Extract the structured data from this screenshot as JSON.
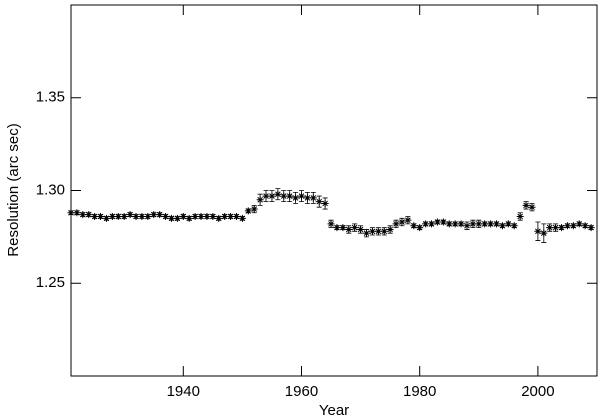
{
  "chart_data": {
    "type": "scatter",
    "x_label": "Year",
    "y_label": "Resolution (arc sec)",
    "x": [
      1921,
      1922,
      1923,
      1924,
      1925,
      1926,
      1927,
      1928,
      1929,
      1930,
      1931,
      1932,
      1933,
      1934,
      1935,
      1936,
      1937,
      1938,
      1939,
      1940,
      1941,
      1942,
      1943,
      1944,
      1945,
      1946,
      1947,
      1948,
      1949,
      1950,
      1951,
      1952,
      1953,
      1954,
      1955,
      1956,
      1957,
      1958,
      1959,
      1960,
      1961,
      1962,
      1963,
      1964,
      1965,
      1966,
      1967,
      1968,
      1969,
      1970,
      1971,
      1972,
      1973,
      1974,
      1975,
      1976,
      1977,
      1978,
      1979,
      1980,
      1981,
      1982,
      1983,
      1984,
      1985,
      1986,
      1987,
      1988,
      1989,
      1990,
      1991,
      1992,
      1993,
      1994,
      1995,
      1996,
      1997,
      1998,
      1999,
      2000,
      2001,
      2002,
      2003,
      2004,
      2005,
      2006,
      2007,
      2008,
      2009
    ],
    "values": [
      1.288,
      1.288,
      1.287,
      1.287,
      1.286,
      1.286,
      1.285,
      1.286,
      1.286,
      1.286,
      1.287,
      1.286,
      1.286,
      1.286,
      1.287,
      1.287,
      1.286,
      1.285,
      1.285,
      1.286,
      1.285,
      1.286,
      1.286,
      1.286,
      1.286,
      1.285,
      1.286,
      1.286,
      1.286,
      1.285,
      1.289,
      1.29,
      1.295,
      1.297,
      1.297,
      1.298,
      1.297,
      1.297,
      1.296,
      1.297,
      1.296,
      1.296,
      1.294,
      1.293,
      1.282,
      1.28,
      1.28,
      1.279,
      1.28,
      1.279,
      1.277,
      1.278,
      1.278,
      1.278,
      1.279,
      1.282,
      1.283,
      1.284,
      1.281,
      1.28,
      1.282,
      1.282,
      1.283,
      1.283,
      1.282,
      1.282,
      1.282,
      1.281,
      1.282,
      1.282,
      1.282,
      1.282,
      1.282,
      1.281,
      1.282,
      1.281,
      1.286,
      1.292,
      1.291,
      1.278,
      1.277,
      1.28,
      1.28,
      1.28,
      1.281,
      1.281,
      1.282,
      1.281,
      1.28
    ],
    "errors": [
      0.001,
      0.001,
      0.001,
      0.001,
      0.001,
      0.001,
      0.001,
      0.001,
      0.001,
      0.001,
      0.001,
      0.001,
      0.001,
      0.001,
      0.001,
      0.001,
      0.001,
      0.001,
      0.001,
      0.001,
      0.001,
      0.001,
      0.001,
      0.001,
      0.001,
      0.001,
      0.001,
      0.001,
      0.001,
      0.001,
      0.001,
      0.002,
      0.003,
      0.003,
      0.003,
      0.003,
      0.003,
      0.003,
      0.003,
      0.003,
      0.003,
      0.003,
      0.003,
      0.003,
      0.002,
      0.001,
      0.001,
      0.002,
      0.002,
      0.002,
      0.002,
      0.002,
      0.002,
      0.002,
      0.002,
      0.002,
      0.002,
      0.002,
      0.001,
      0.001,
      0.001,
      0.001,
      0.001,
      0.001,
      0.001,
      0.001,
      0.001,
      0.002,
      0.002,
      0.002,
      0.001,
      0.001,
      0.001,
      0.001,
      0.001,
      0.001,
      0.002,
      0.002,
      0.002,
      0.005,
      0.005,
      0.002,
      0.002,
      0.001,
      0.001,
      0.001,
      0.001,
      0.001,
      0.001
    ],
    "color": "#000000",
    "xlim": [
      1921,
      2010
    ],
    "xticks": [
      1940,
      1960,
      1980,
      2000
    ],
    "ylim": [
      1.2,
      1.4
    ],
    "yticks": [
      1.25,
      {
        "value": 1.3,
        "label": "1.30"
      },
      1.35
    ]
  }
}
